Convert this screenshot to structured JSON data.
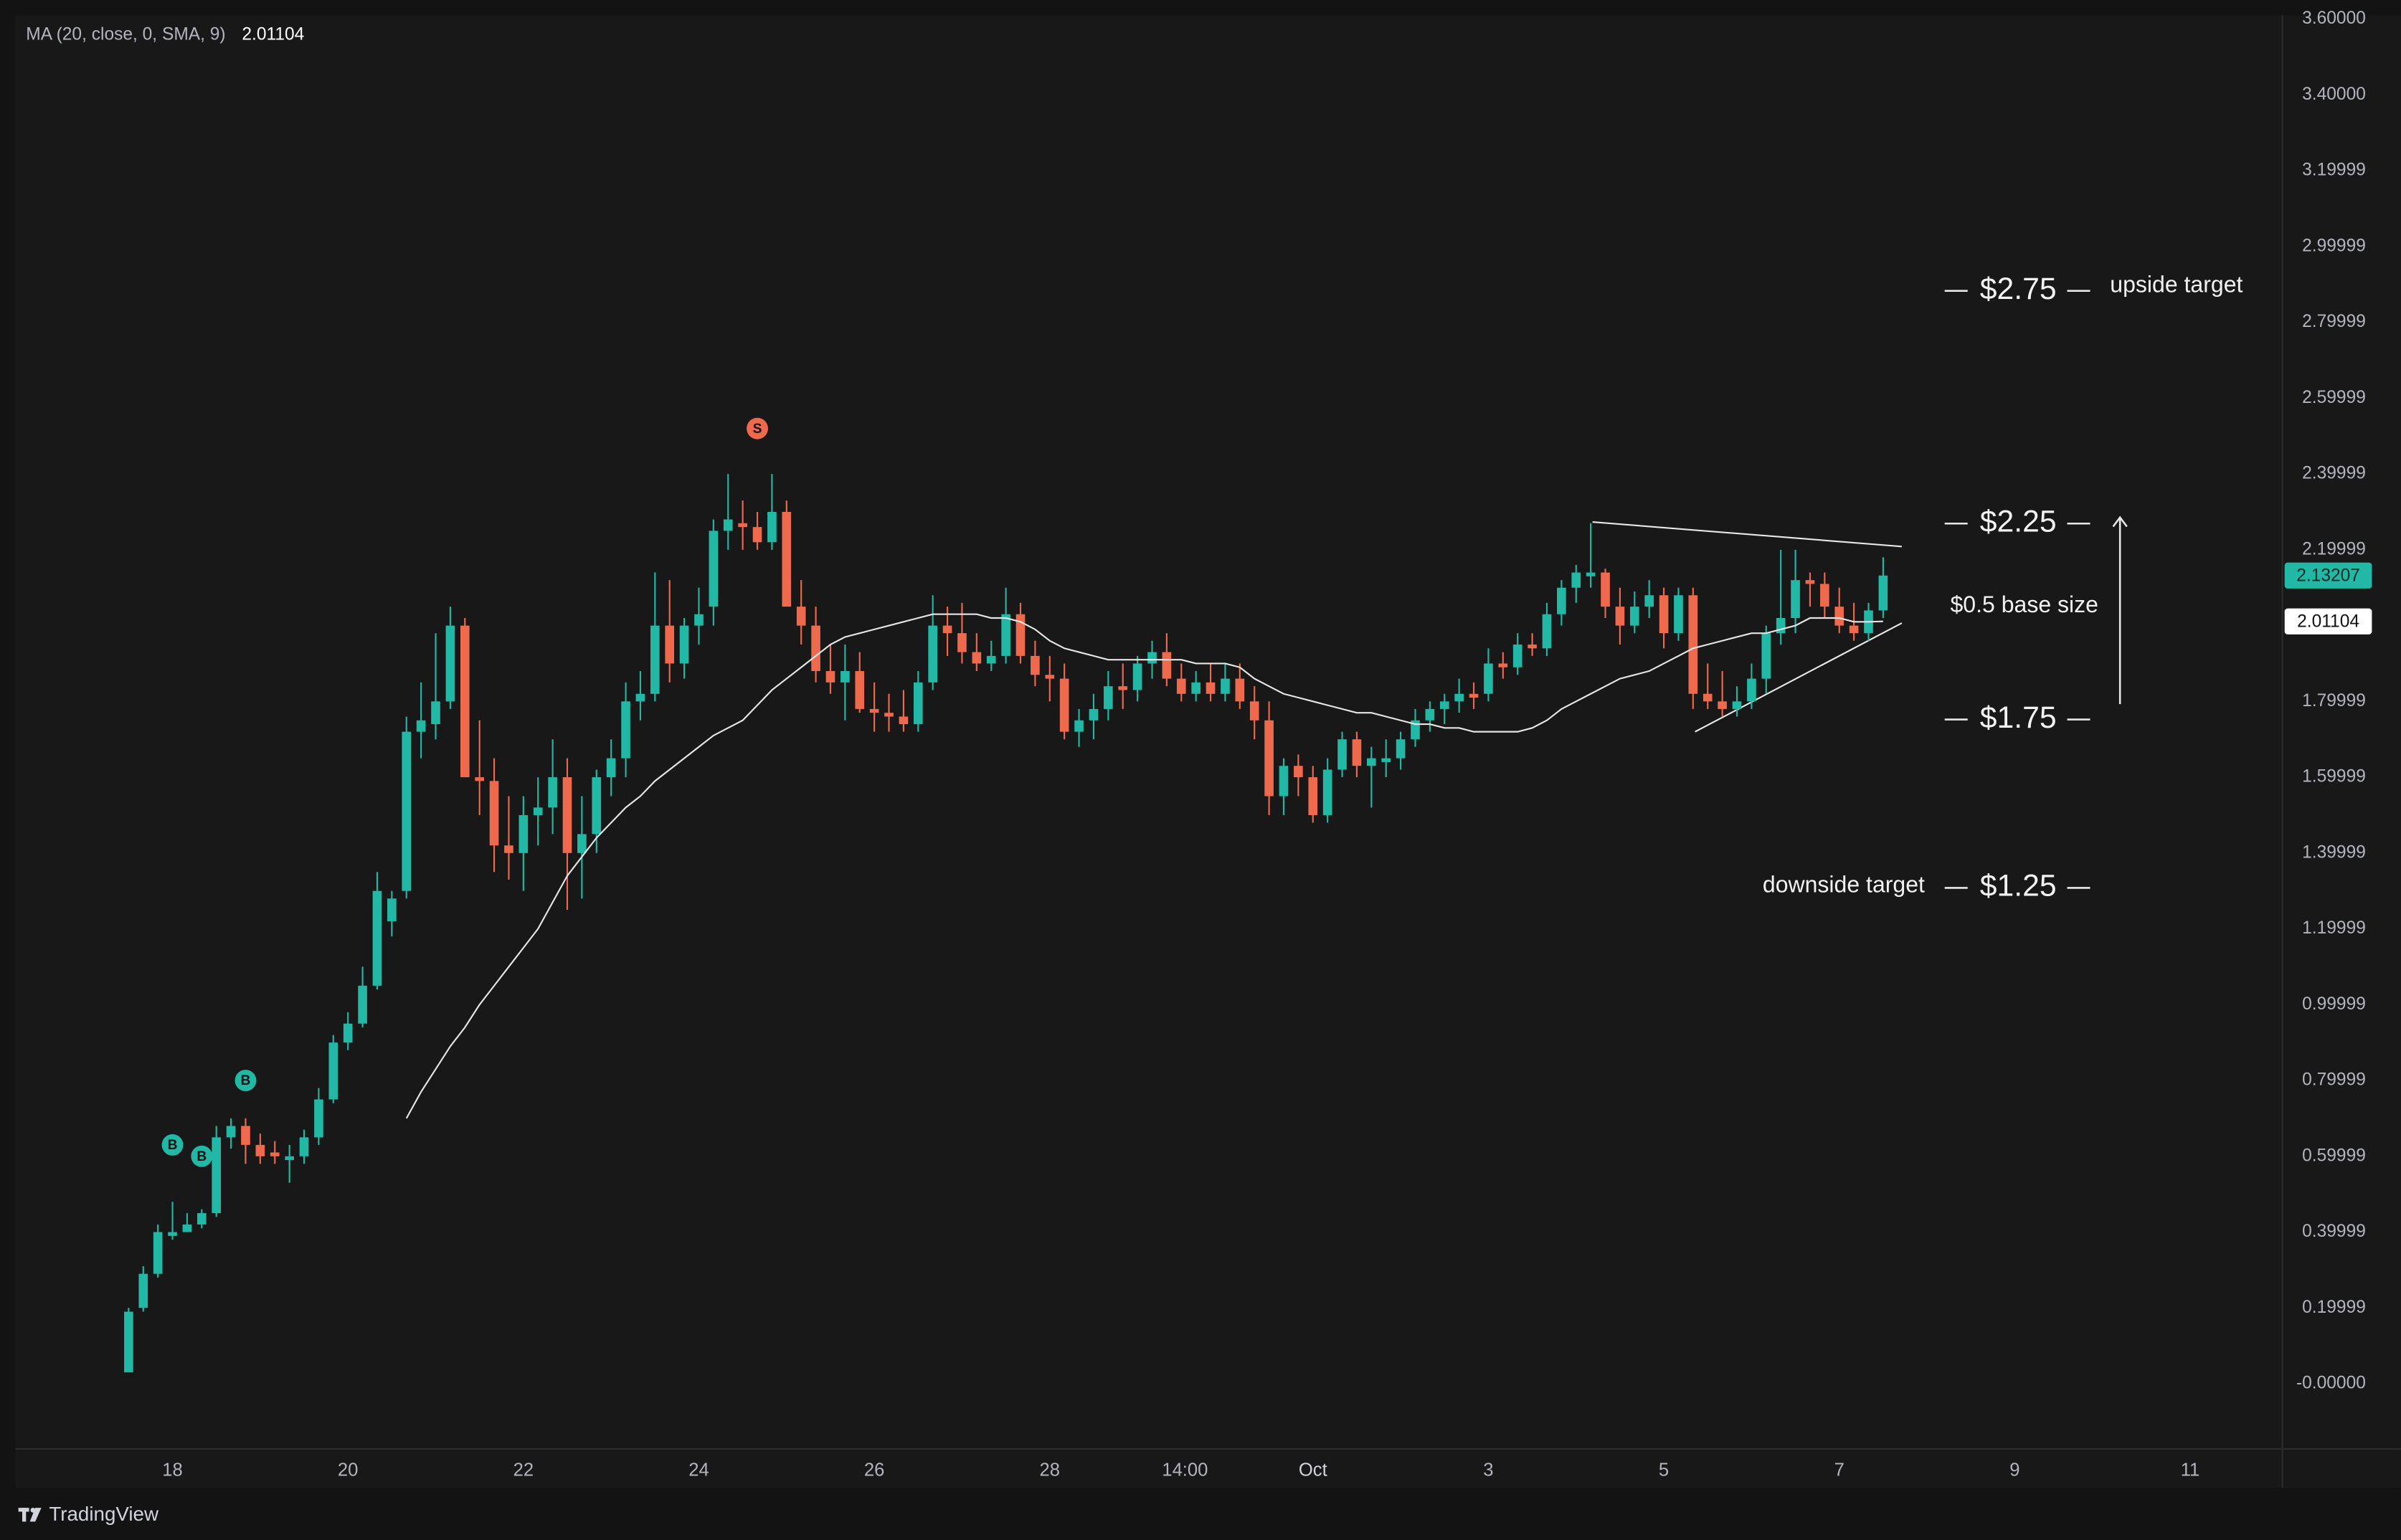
{
  "chart_data": {
    "type": "candlestick",
    "up_color": "#22b8a6",
    "down_color": "#ef6a4c",
    "x": [
      -12,
      -8,
      -4,
      0,
      4,
      8,
      12,
      16,
      20,
      24,
      28,
      32,
      36,
      40,
      44,
      48,
      52,
      56,
      60,
      64,
      68,
      72,
      76,
      80,
      84,
      88,
      92,
      96,
      100,
      104,
      108,
      112,
      116,
      120,
      124,
      128,
      132,
      136,
      140,
      144,
      148,
      152,
      156,
      160,
      164,
      168,
      172,
      176,
      180,
      184,
      188,
      192,
      196,
      200,
      204,
      208,
      212,
      216,
      220,
      224,
      228,
      232,
      236,
      240,
      244,
      248,
      252,
      256,
      260,
      264,
      268,
      272,
      276,
      280,
      284,
      288,
      292,
      296,
      300,
      304,
      308,
      312,
      316,
      320,
      324,
      328,
      332,
      336,
      340,
      344,
      348,
      352,
      356,
      360,
      364,
      368,
      372,
      376,
      380,
      384,
      388,
      392,
      396,
      400,
      404,
      408,
      412,
      416,
      420,
      424,
      428,
      432,
      436,
      440,
      444,
      448,
      452,
      456,
      460,
      464,
      468
    ],
    "open": [
      0.03,
      0.2,
      0.29,
      0.39,
      0.4,
      0.42,
      0.45,
      0.65,
      0.68,
      0.63,
      0.61,
      0.59,
      0.6,
      0.65,
      0.75,
      0.9,
      0.95,
      1.05,
      1.22,
      1.3,
      1.72,
      1.74,
      1.8,
      2.0,
      1.6,
      1.59,
      1.42,
      1.4,
      1.5,
      1.52,
      1.6,
      1.4,
      1.45,
      1.6,
      1.65,
      1.8,
      1.82,
      2.0,
      1.9,
      2.0,
      2.05,
      2.25,
      2.27,
      2.26,
      2.22,
      2.3,
      2.05,
      2.0,
      1.88,
      1.85,
      1.88,
      1.78,
      1.77,
      1.76,
      1.74,
      1.85,
      2.0,
      1.98,
      1.93,
      1.9,
      1.92,
      2.03,
      1.92,
      1.87,
      1.86,
      1.72,
      1.75,
      1.78,
      1.84,
      1.83,
      1.9,
      1.93,
      1.86,
      1.82,
      1.85,
      1.82,
      1.86,
      1.8,
      1.75,
      1.55,
      1.63,
      1.6,
      1.5,
      1.62,
      1.7,
      1.63,
      1.64,
      1.65,
      1.7,
      1.75,
      1.78,
      1.8,
      1.82,
      1.82,
      1.9,
      1.89,
      1.95,
      1.94,
      2.03,
      2.1,
      2.13,
      2.14,
      2.05,
      2.0,
      2.05,
      2.08,
      1.98,
      2.08,
      1.82,
      1.8,
      1.78,
      1.8,
      1.86,
      1.98,
      2.02,
      2.12,
      2.11,
      2.05,
      2.0,
      1.98,
      2.04
    ],
    "high": [
      0.2,
      0.31,
      0.42,
      0.48,
      0.45,
      0.46,
      0.68,
      0.7,
      0.7,
      0.66,
      0.64,
      0.63,
      0.67,
      0.78,
      0.92,
      0.98,
      1.1,
      1.35,
      1.3,
      1.76,
      1.85,
      1.98,
      2.05,
      2.02,
      1.75,
      1.65,
      1.55,
      1.55,
      1.6,
      1.7,
      1.65,
      1.55,
      1.62,
      1.7,
      1.85,
      1.88,
      2.14,
      2.12,
      2.02,
      2.1,
      2.28,
      2.4,
      2.33,
      2.3,
      2.4,
      2.33,
      2.12,
      2.05,
      1.95,
      1.95,
      1.93,
      1.85,
      1.82,
      1.83,
      1.88,
      2.08,
      2.05,
      2.06,
      1.98,
      1.96,
      2.1,
      2.06,
      1.96,
      1.92,
      1.9,
      1.78,
      1.82,
      1.88,
      1.9,
      1.92,
      1.96,
      1.98,
      1.9,
      1.88,
      1.9,
      1.9,
      1.9,
      1.84,
      1.8,
      1.65,
      1.66,
      1.63,
      1.65,
      1.72,
      1.72,
      1.68,
      1.7,
      1.72,
      1.78,
      1.8,
      1.82,
      1.86,
      1.85,
      1.94,
      1.93,
      1.98,
      1.98,
      2.06,
      2.12,
      2.16,
      2.27,
      2.15,
      2.1,
      2.09,
      2.12,
      2.1,
      2.1,
      2.1,
      1.9,
      1.88,
      1.84,
      1.9,
      2.0,
      2.2,
      2.2,
      2.14,
      2.14,
      2.1,
      2.06,
      2.06,
      2.18
    ],
    "low": [
      0.03,
      0.19,
      0.28,
      0.38,
      0.4,
      0.41,
      0.44,
      0.62,
      0.58,
      0.58,
      0.58,
      0.53,
      0.58,
      0.63,
      0.74,
      0.88,
      0.94,
      1.04,
      1.18,
      1.28,
      1.65,
      1.7,
      1.78,
      1.6,
      1.5,
      1.35,
      1.33,
      1.3,
      1.42,
      1.45,
      1.25,
      1.28,
      1.4,
      1.55,
      1.6,
      1.75,
      1.8,
      1.85,
      1.86,
      1.95,
      2.0,
      2.2,
      2.2,
      2.2,
      2.2,
      2.05,
      1.95,
      1.85,
      1.82,
      1.75,
      1.77,
      1.72,
      1.72,
      1.72,
      1.72,
      1.83,
      1.92,
      1.9,
      1.88,
      1.88,
      1.9,
      1.9,
      1.84,
      1.8,
      1.7,
      1.68,
      1.7,
      1.75,
      1.78,
      1.8,
      1.86,
      1.84,
      1.8,
      1.8,
      1.8,
      1.8,
      1.78,
      1.7,
      1.5,
      1.5,
      1.55,
      1.48,
      1.48,
      1.6,
      1.6,
      1.52,
      1.6,
      1.62,
      1.68,
      1.72,
      1.74,
      1.77,
      1.78,
      1.8,
      1.86,
      1.87,
      1.92,
      1.92,
      2.0,
      2.06,
      2.1,
      2.02,
      1.95,
      1.98,
      2.02,
      1.94,
      1.96,
      1.78,
      1.78,
      1.76,
      1.76,
      1.78,
      1.82,
      1.95,
      1.98,
      2.05,
      2.02,
      1.98,
      1.96,
      1.96,
      2.02
    ],
    "close": [
      0.19,
      0.29,
      0.4,
      0.4,
      0.42,
      0.45,
      0.65,
      0.68,
      0.63,
      0.6,
      0.6,
      0.6,
      0.65,
      0.75,
      0.9,
      0.95,
      1.05,
      1.3,
      1.28,
      1.72,
      1.75,
      1.8,
      2.0,
      1.6,
      1.59,
      1.42,
      1.4,
      1.5,
      1.52,
      1.6,
      1.4,
      1.45,
      1.6,
      1.65,
      1.8,
      1.82,
      2.0,
      1.9,
      2.0,
      2.03,
      2.25,
      2.28,
      2.26,
      2.22,
      2.3,
      2.05,
      2.0,
      1.88,
      1.85,
      1.88,
      1.78,
      1.77,
      1.76,
      1.74,
      1.85,
      2.0,
      1.98,
      1.93,
      1.9,
      1.92,
      2.03,
      1.92,
      1.87,
      1.86,
      1.72,
      1.75,
      1.78,
      1.84,
      1.83,
      1.9,
      1.93,
      1.86,
      1.82,
      1.85,
      1.82,
      1.86,
      1.8,
      1.75,
      1.55,
      1.63,
      1.6,
      1.5,
      1.62,
      1.7,
      1.63,
      1.65,
      1.65,
      1.7,
      1.75,
      1.78,
      1.8,
      1.82,
      1.81,
      1.9,
      1.89,
      1.95,
      1.94,
      2.03,
      2.1,
      2.14,
      2.14,
      2.05,
      2.0,
      2.05,
      2.08,
      1.98,
      2.08,
      1.82,
      1.8,
      1.78,
      1.8,
      1.86,
      1.98,
      2.02,
      2.12,
      2.11,
      2.05,
      2.0,
      1.98,
      2.04,
      2.13207
    ],
    "ma": {
      "name": "MA (20, close, 0, SMA, 9)",
      "color": "#e6e6e6",
      "values": [
        null,
        null,
        null,
        null,
        null,
        null,
        null,
        null,
        null,
        null,
        null,
        null,
        null,
        null,
        null,
        null,
        null,
        null,
        null,
        0.7,
        0.77,
        0.83,
        0.89,
        0.94,
        1.0,
        1.05,
        1.1,
        1.15,
        1.2,
        1.27,
        1.34,
        1.39,
        1.44,
        1.48,
        1.52,
        1.55,
        1.59,
        1.62,
        1.65,
        1.68,
        1.71,
        1.73,
        1.75,
        1.79,
        1.83,
        1.86,
        1.89,
        1.92,
        1.95,
        1.97,
        1.98,
        1.99,
        2.0,
        2.01,
        2.02,
        2.03,
        2.03,
        2.03,
        2.03,
        2.02,
        2.02,
        2.01,
        1.99,
        1.96,
        1.94,
        1.93,
        1.92,
        1.91,
        1.91,
        1.91,
        1.91,
        1.91,
        1.91,
        1.9,
        1.9,
        1.9,
        1.89,
        1.86,
        1.84,
        1.82,
        1.81,
        1.8,
        1.79,
        1.78,
        1.77,
        1.77,
        1.76,
        1.75,
        1.74,
        1.74,
        1.73,
        1.73,
        1.72,
        1.72,
        1.72,
        1.72,
        1.73,
        1.75,
        1.78,
        1.8,
        1.82,
        1.84,
        1.86,
        1.87,
        1.88,
        1.9,
        1.92,
        1.94,
        1.95,
        1.96,
        1.97,
        1.98,
        1.98,
        1.99,
        2.0,
        2.02,
        2.02,
        2.02,
        2.01,
        2.01,
        2.01104
      ]
    },
    "xlim": [
      -43,
      577
    ],
    "xticks": [
      {
        "value": 0,
        "label": "18"
      },
      {
        "value": 48,
        "label": "20"
      },
      {
        "value": 96,
        "label": "22"
      },
      {
        "value": 144,
        "label": "24"
      },
      {
        "value": 192,
        "label": "26"
      },
      {
        "value": 240,
        "label": "28"
      },
      {
        "value": 277,
        "label": "14:00"
      },
      {
        "value": 312,
        "label": "Oct"
      },
      {
        "value": 360,
        "label": "3"
      },
      {
        "value": 408,
        "label": "5"
      },
      {
        "value": 456,
        "label": "7"
      },
      {
        "value": 504,
        "label": "9"
      },
      {
        "value": 552,
        "label": "11"
      }
    ],
    "ylim": [
      -0.17,
      3.61
    ],
    "yticks": [
      {
        "value": 3.6,
        "label": "3.60000"
      },
      {
        "value": 3.4,
        "label": "3.40000"
      },
      3.19999,
      2.99999,
      2.79999,
      2.59999,
      2.39999,
      2.19999,
      1.79999,
      1.59999,
      1.39999,
      1.19999,
      0.99999,
      0.79999,
      0.59999,
      0.39999,
      0.19999,
      {
        "value": 0,
        "label": "-0.00000"
      }
    ],
    "grid": false,
    "signals": [
      {
        "label": "B",
        "x": 0,
        "price": 0.63,
        "color": "#22b8a6"
      },
      {
        "label": "B",
        "x": 8,
        "price": 0.6,
        "color": "#22b8a6"
      },
      {
        "label": "B",
        "x": 20,
        "price": 0.8,
        "color": "#22b8a6"
      },
      {
        "label": "S",
        "x": 160,
        "price": 2.52,
        "color": "#ef6a4c"
      }
    ],
    "annotations": [
      "$2.75",
      "upside target",
      "$2.25",
      "$1.75",
      "$1.25",
      "downside target",
      "$0.5 base size"
    ],
    "footer": "TradingView"
  }
}
